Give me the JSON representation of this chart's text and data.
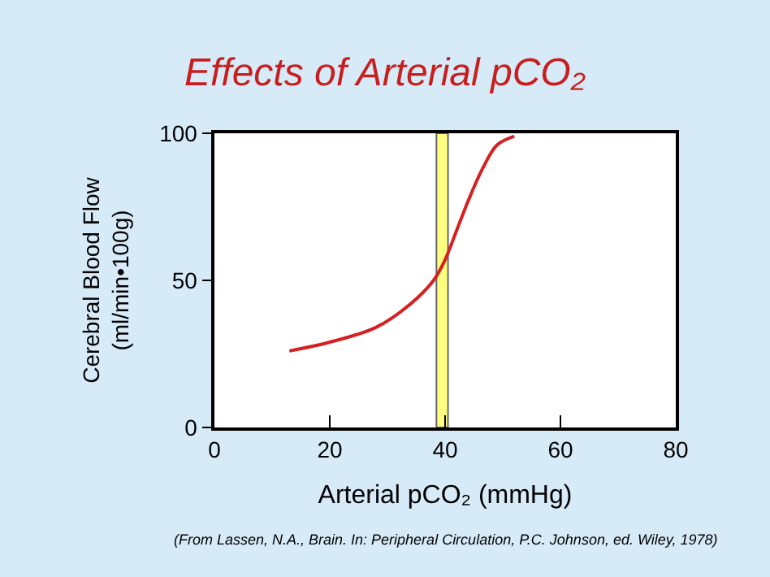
{
  "chart_data": {
    "type": "line",
    "title": "Effects of Arterial pCO₂",
    "xlabel": "Arterial pCO₂ (mmHg)",
    "ylabel": "Cerebral Blood Flow\n(ml/min•100g)",
    "x": [
      13,
      20,
      28,
      34,
      38,
      40,
      42,
      44,
      46.5,
      49,
      52
    ],
    "series": [
      {
        "color": "#d42020",
        "values": [
          26,
          29,
          34,
          42,
          50,
          57,
          67,
          77,
          88,
          96,
          99
        ]
      }
    ],
    "xlim": [
      0,
      80
    ],
    "ylim": [
      0,
      100
    ],
    "xticks": [
      0,
      20,
      40,
      60,
      80
    ],
    "yticks": [
      0,
      50,
      100
    ],
    "bands": [
      {
        "axis": "x",
        "from": 38.5,
        "to": 40.5,
        "color": "#ffff80"
      }
    ],
    "annotations": [
      "(From Lassen, N.A., Brain. In: Peripheral Circulation, P.C. Johnson, ed. Wiley, 1978)"
    ],
    "grid": false,
    "legend": false,
    "marker": "none",
    "line_style": "solid"
  }
}
